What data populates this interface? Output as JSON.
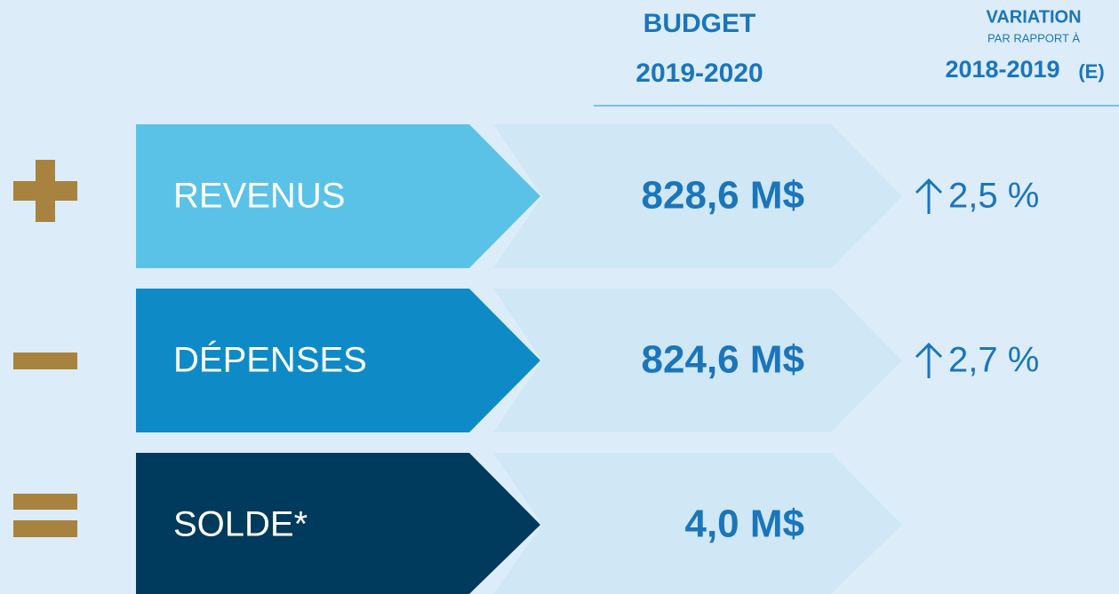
{
  "header": {
    "budget": "BUDGET",
    "budget_period": "2019-2020",
    "variation": "VARIATION",
    "variation_sub": "PAR RAPPORT À",
    "variation_period": "2018-2019",
    "variation_note": "(E)"
  },
  "rows": [
    {
      "label": "REVENUS",
      "amount": "828,6 M$",
      "variation": "2,5 %"
    },
    {
      "label": "DÉPENSES",
      "amount": "824,6 M$",
      "variation": "2,7 %"
    },
    {
      "label": "SOLDE*",
      "amount": "4,0 M$"
    }
  ]
}
